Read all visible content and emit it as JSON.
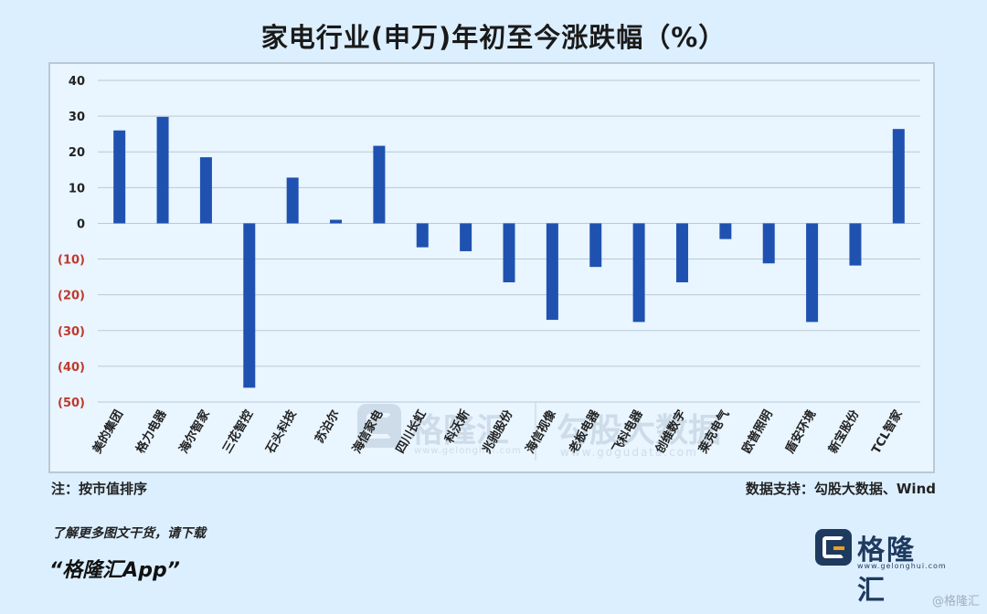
{
  "title": "家电行业(申万)年初至今涨跌幅（%）",
  "note_left": "注：按市值排序",
  "note_right": "数据支持：勾股大数据、Wind",
  "footer_line1": "了解更多图文干货，请下载",
  "footer_line2": "“格隆汇App”",
  "brand": {
    "name": "格隆汇",
    "url": "www.gelonghui.com"
  },
  "watermark": {
    "brand1": "格隆汇",
    "url1": "www.gelonghui.com",
    "brand2": "勾股大数据",
    "url2": "www.gogudata.com",
    "corner": "@格隆汇"
  },
  "colors": {
    "bar": "#1f52b0",
    "negative_tick": "#c0392b",
    "grid": "#b9c9d6",
    "background": "#dcefff"
  },
  "chart_data": {
    "type": "bar",
    "title": "家电行业(申万)年初至今涨跌幅（%）",
    "categories": [
      "美的集团",
      "格力电器",
      "海尔智家",
      "三花智控",
      "石头科技",
      "苏泊尔",
      "海信家电",
      "四川长虹",
      "科沃斯",
      "兆驰股份",
      "海信视像",
      "老板电器",
      "飞科电器",
      "创维数字",
      "莱克电气",
      "欧普照明",
      "盾安环境",
      "新宝股份",
      "TCL智家"
    ],
    "values": [
      26.0,
      29.8,
      18.5,
      -46.0,
      12.8,
      1.0,
      21.7,
      -6.7,
      -7.8,
      -16.5,
      -27.0,
      -12.2,
      -27.6,
      -16.5,
      -4.4,
      -11.2,
      -27.6,
      -11.8,
      26.4
    ],
    "ylim": [
      -50,
      40
    ],
    "yticks": [
      "40",
      "30",
      "20",
      "10",
      "0",
      "(10)",
      "(20)",
      "(30)",
      "(40)",
      "(50)"
    ],
    "ytick_values": [
      40,
      30,
      20,
      10,
      0,
      -10,
      -20,
      -30,
      -40,
      -50
    ],
    "grid": true,
    "xlabel": "",
    "ylabel": ""
  }
}
